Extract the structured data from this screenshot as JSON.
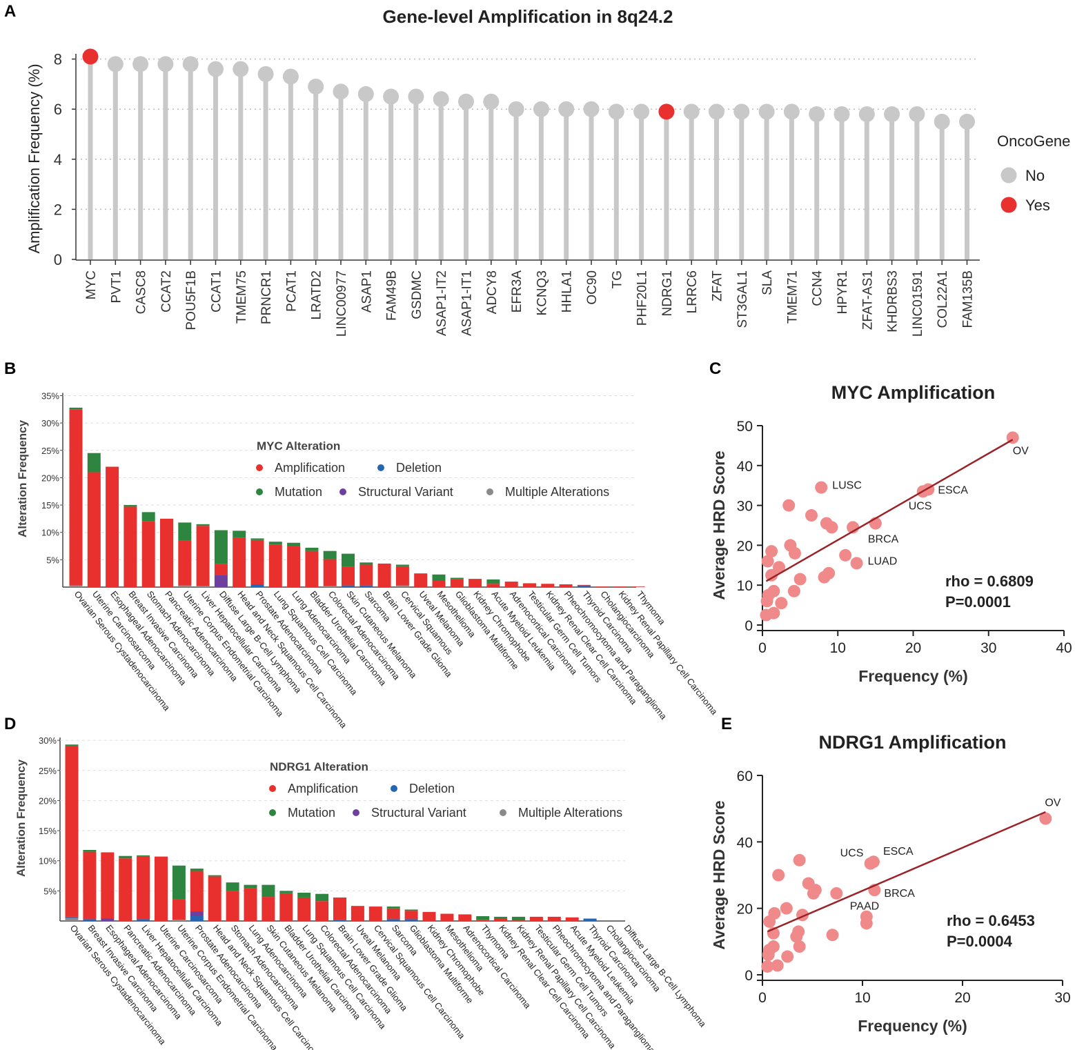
{
  "panels": {
    "a": "A",
    "b": "B",
    "c": "C",
    "d": "D",
    "e": "E"
  },
  "colors": {
    "amplification": "#e8302e",
    "deletion": "#2566b3",
    "mutation": "#2e8540",
    "structural_variant": "#6f3fa0",
    "multiple": "#8a8a8a",
    "lollipop_no": "#c8c8c8",
    "lollipop_yes": "#e8302e",
    "scatter_point": "#f08a8a",
    "fit_line": "#9b2226"
  },
  "chart_data": [
    {
      "id": "A",
      "type": "lollipop",
      "title": "Gene-level Amplification in 8q24.2",
      "xlabel": "",
      "ylabel": "Amplification Frequency (%)",
      "ylim": [
        0,
        8.5
      ],
      "yticks": [
        0,
        2,
        4,
        6,
        8
      ],
      "grid": true,
      "legend": {
        "title": "OncoGene",
        "entries": [
          "No",
          "Yes"
        ],
        "placement": "right"
      },
      "categories": [
        "MYC",
        "PVT1",
        "CASC8",
        "CCAT2",
        "POU5F1B",
        "CCAT1",
        "TMEM75",
        "PRNCR1",
        "PCAT1",
        "LRATD2",
        "LINC00977",
        "ASAP1",
        "FAM49B",
        "GSDMC",
        "ASAP1-IT2",
        "ASAP1-IT1",
        "ADCY8",
        "EFR3A",
        "KCNQ3",
        "HHLA1",
        "OC90",
        "TG",
        "PHF20L1",
        "NDRG1",
        "LRRC6",
        "ZFAT",
        "ST3GAL1",
        "SLA",
        "TMEM71",
        "CCN4",
        "HPYR1",
        "ZFAT-AS1",
        "KHDRBS3",
        "LINC01591",
        "COL22A1",
        "FAM135B"
      ],
      "values": [
        8.1,
        7.8,
        7.8,
        7.8,
        7.8,
        7.6,
        7.6,
        7.4,
        7.3,
        6.9,
        6.7,
        6.6,
        6.5,
        6.5,
        6.4,
        6.3,
        6.3,
        6.0,
        6.0,
        6.0,
        6.0,
        5.9,
        5.9,
        5.9,
        5.9,
        5.9,
        5.9,
        5.9,
        5.9,
        5.8,
        5.8,
        5.8,
        5.8,
        5.8,
        5.5,
        5.5
      ],
      "oncogene": [
        "Yes",
        "No",
        "No",
        "No",
        "No",
        "No",
        "No",
        "No",
        "No",
        "No",
        "No",
        "No",
        "No",
        "No",
        "No",
        "No",
        "No",
        "No",
        "No",
        "No",
        "No",
        "No",
        "No",
        "Yes",
        "No",
        "No",
        "No",
        "No",
        "No",
        "No",
        "No",
        "No",
        "No",
        "No",
        "No",
        "No"
      ]
    },
    {
      "id": "B",
      "type": "bar",
      "stacked": true,
      "title": "",
      "xlabel": "",
      "ylabel": "Alteration Frequency",
      "ylim": [
        0,
        35
      ],
      "yticks": [
        "5%",
        "10%",
        "15%",
        "20%",
        "25%",
        "30%",
        "35%"
      ],
      "ytick_values": [
        5,
        10,
        15,
        20,
        25,
        30,
        35
      ],
      "legend": {
        "title": "MYC Alteration",
        "entries": [
          "Amplification",
          "Deletion",
          "Mutation",
          "Structural Variant",
          "Multiple Alterations"
        ],
        "placement": "top-center"
      },
      "categories": [
        "Ovarian Serous Cystadenocarcinoma",
        "Uterine Carcinosarcoma",
        "Esophageal Adenocarcinoma",
        "Breast Invasive Carcinoma",
        "Stomach Adenocarcinoma",
        "Pancreatic Adenocarcinoma",
        "Uterine Corpus Endometrial Carcinoma",
        "Liver Hepatocellular Carcinoma",
        "Diffuse Large B-Cell Lymphoma",
        "Head and Neck Squamous Cell Carcinoma",
        "Prostate Adenocarcinoma",
        "Lung Squamous Cell Carcinoma",
        "Lung Adenocarcinoma",
        "Bladder Urothelial Carcinoma",
        "Colorectal Adenocarcinoma",
        "Skin Cutaneous Melanoma",
        "Sarcoma",
        "Brain Lower Grade Glioma",
        "Cervical Squamous",
        "Uveal Melanoma",
        "Mesothelioma",
        "Glioblastoma Multiforme",
        "Kidney Chromophobe",
        "Acute Myeloid Leukemia",
        "Adrenocortical Carcinoma",
        "Testicular Germ Cell Tumors",
        "Kidney Renal Clear Cell Carcinoma",
        "Pheochromocytoma and Paraganglioma",
        "Thyroid Carcinoma",
        "Cholangiocarcinoma",
        "Kidney Renal Papillary Cell Carcinoma",
        "Thymoma"
      ],
      "series": [
        {
          "name": "Multiple Alterations",
          "values": [
            0.3,
            0,
            0,
            0,
            0,
            0,
            0.3,
            0.2,
            0,
            0,
            0,
            0,
            0,
            0,
            0.2,
            0,
            0,
            0,
            0.3,
            0,
            0,
            0,
            0,
            0,
            0,
            0,
            0,
            0,
            0,
            0,
            0,
            0
          ]
        },
        {
          "name": "Deletion",
          "values": [
            0,
            0,
            0,
            0,
            0,
            0,
            0,
            0,
            0,
            0,
            0.5,
            0,
            0,
            0,
            0,
            0.3,
            0.3,
            0,
            0,
            0,
            0,
            0,
            0,
            0,
            0,
            0,
            0,
            0,
            0.3,
            0,
            0,
            0
          ]
        },
        {
          "name": "Structural Variant",
          "values": [
            0,
            0,
            0,
            0,
            0,
            0,
            0,
            0,
            2.2,
            0,
            0,
            0,
            0,
            0,
            0,
            0,
            0,
            0,
            0,
            0,
            0,
            0,
            0,
            0,
            0,
            0,
            0,
            0,
            0,
            0,
            0,
            0
          ]
        },
        {
          "name": "Amplification",
          "values": [
            32.2,
            21.0,
            22.0,
            14.7,
            12.0,
            12.5,
            8.2,
            11.0,
            2.0,
            9.0,
            8.1,
            7.8,
            7.5,
            6.6,
            4.9,
            3.4,
            3.8,
            4.3,
            3.5,
            2.5,
            1.2,
            1.5,
            1.5,
            0.6,
            1.0,
            0.7,
            0.6,
            0.5,
            0.1,
            0.1,
            0.1,
            0.1
          ]
        },
        {
          "name": "Mutation",
          "values": [
            0.3,
            3.5,
            0,
            0.3,
            1.7,
            0,
            3.3,
            0.3,
            6.2,
            1.3,
            0.3,
            0.5,
            0.6,
            0.6,
            1.5,
            2.4,
            0.4,
            0,
            0.3,
            0,
            1.1,
            0.2,
            0,
            0.8,
            0,
            0,
            0,
            0,
            0,
            0,
            0,
            0
          ]
        }
      ]
    },
    {
      "id": "C",
      "type": "scatter",
      "title": "MYC Amplification",
      "xlabel": "Frequency (%)",
      "ylabel": "Average HRD Score",
      "xlim": [
        0,
        40
      ],
      "ylim": [
        0,
        50
      ],
      "xticks": [
        0,
        10,
        20,
        30,
        40
      ],
      "yticks": [
        0,
        10,
        20,
        30,
        40,
        50
      ],
      "annotations": [
        "rho = 0.6809",
        "P=0.0001"
      ],
      "fit_line": {
        "x": [
          0.5,
          33.2
        ],
        "y": [
          11.0,
          46.5
        ]
      },
      "points": [
        {
          "x": 33.2,
          "y": 47.0,
          "label": "OV"
        },
        {
          "x": 7.8,
          "y": 34.5,
          "label": "LUSC"
        },
        {
          "x": 22.0,
          "y": 34.0,
          "label": "ESCA"
        },
        {
          "x": 21.3,
          "y": 33.5,
          "label": "UCS"
        },
        {
          "x": 15.0,
          "y": 25.5,
          "label": "BRCA"
        },
        {
          "x": 12.5,
          "y": 15.5,
          "label": "LUAD"
        },
        {
          "x": 3.5,
          "y": 30.0,
          "label": ""
        },
        {
          "x": 6.5,
          "y": 27.5,
          "label": ""
        },
        {
          "x": 8.5,
          "y": 25.5,
          "label": ""
        },
        {
          "x": 9.2,
          "y": 24.5,
          "label": ""
        },
        {
          "x": 12.0,
          "y": 24.5,
          "label": ""
        },
        {
          "x": 3.7,
          "y": 20.0,
          "label": ""
        },
        {
          "x": 4.3,
          "y": 18.0,
          "label": ""
        },
        {
          "x": 1.2,
          "y": 18.5,
          "label": ""
        },
        {
          "x": 0.7,
          "y": 16.0,
          "label": ""
        },
        {
          "x": 2.2,
          "y": 14.5,
          "label": ""
        },
        {
          "x": 11.0,
          "y": 17.5,
          "label": ""
        },
        {
          "x": 8.8,
          "y": 13.0,
          "label": ""
        },
        {
          "x": 8.2,
          "y": 12.0,
          "label": ""
        },
        {
          "x": 5.0,
          "y": 11.5,
          "label": ""
        },
        {
          "x": 1.2,
          "y": 12.5,
          "label": ""
        },
        {
          "x": 1.5,
          "y": 8.5,
          "label": ""
        },
        {
          "x": 4.2,
          "y": 8.5,
          "label": ""
        },
        {
          "x": 0.8,
          "y": 7.5,
          "label": ""
        },
        {
          "x": 0.6,
          "y": 6.0,
          "label": ""
        },
        {
          "x": 2.5,
          "y": 5.5,
          "label": ""
        },
        {
          "x": 0.5,
          "y": 2.5,
          "label": ""
        },
        {
          "x": 1.5,
          "y": 3.0,
          "label": ""
        }
      ]
    },
    {
      "id": "D",
      "type": "bar",
      "stacked": true,
      "title": "",
      "xlabel": "",
      "ylabel": "Alteration Frequency",
      "ylim": [
        0,
        30
      ],
      "yticks": [
        "5%",
        "10%",
        "15%",
        "20%",
        "25%",
        "30%"
      ],
      "ytick_values": [
        5,
        10,
        15,
        20,
        25,
        30
      ],
      "legend": {
        "title": "NDRG1 Alteration",
        "entries": [
          "Amplification",
          "Deletion",
          "Mutation",
          "Structural Variant",
          "Multiple Alterations"
        ],
        "placement": "top-center"
      },
      "categories": [
        "Ovarian Serous Cystadenocarcinoma",
        "Breast Invasive Carcinoma",
        "Esophageal Adenocarcinoma",
        "Pancreatic Adenocarcinoma",
        "Liver Hepatocellular Carcinoma",
        "Uterine Carcinosarcoma",
        "Uterine Corpus Endometrial Carcinoma",
        "Prostate Adenocarcinoma",
        "Head and Neck Squamous Cell Carcinoma",
        "Stomach Adenocarcinoma",
        "Lung Adenocarcinoma",
        "Skin Cutaneous Melanoma",
        "Bladder Urothelial Carcinoma",
        "Lung Squamous Cell Carcinoma",
        "Colorectal Adenocarcinoma",
        "Brain Lower Grade Glioma",
        "Uveal Melanoma",
        "Cervical Squamous Cell Carcinoma",
        "Sarcoma",
        "Glioblastoma Multiforme",
        "Kidney Chromophobe",
        "Mesothelioma",
        "Adrenocortical Carcinoma",
        "Thymoma",
        "Kidney Renal Clear Cell Carcinoma",
        "Kidney Renal Papillary Cell Carcinoma",
        "Testicular Germ Cell Tumors",
        "Pheochromocytoma and Paraganglioma",
        "Acute Myeloid Leukemia",
        "Thyroid Carcinoma",
        "Cholangiocarcinoma",
        "Diffuse Large B-Cell Lymphoma"
      ],
      "series": [
        {
          "name": "Multiple Alterations",
          "values": [
            0.5,
            0,
            0,
            0,
            0,
            0,
            0.2,
            0,
            0,
            0,
            0,
            0,
            0,
            0,
            0,
            0,
            0,
            0,
            0,
            0,
            0,
            0,
            0,
            0,
            0,
            0,
            0,
            0,
            0,
            0,
            0,
            0
          ]
        },
        {
          "name": "Deletion",
          "values": [
            0.2,
            0.3,
            0,
            0,
            0.3,
            0,
            0,
            0.8,
            0,
            0,
            0,
            0,
            0,
            0,
            0,
            0.2,
            0,
            0,
            0.3,
            0.3,
            0,
            0,
            0,
            0,
            0,
            0,
            0,
            0,
            0,
            0.4,
            0,
            0
          ]
        },
        {
          "name": "Structural Variant",
          "values": [
            0,
            0,
            0.4,
            0,
            0,
            0,
            0,
            0.8,
            0,
            0,
            0,
            0,
            0,
            0,
            0,
            0,
            0,
            0,
            0,
            0,
            0,
            0,
            0,
            0,
            0,
            0,
            0,
            0,
            0,
            0,
            0,
            0
          ]
        },
        {
          "name": "Amplification",
          "values": [
            28.4,
            11.2,
            11.0,
            10.4,
            10.4,
            10.7,
            3.4,
            6.7,
            7.4,
            5.0,
            5.4,
            4.0,
            4.6,
            3.9,
            3.3,
            3.7,
            2.5,
            2.4,
            1.8,
            1.4,
            1.5,
            1.2,
            1.1,
            0.2,
            0.4,
            0.1,
            0.7,
            0.7,
            0.6,
            0,
            0,
            0
          ]
        },
        {
          "name": "Mutation",
          "values": [
            0.2,
            0.3,
            0,
            0.4,
            0.2,
            0,
            5.6,
            0.4,
            0.2,
            1.4,
            0.6,
            2.0,
            0.4,
            0.8,
            1.2,
            0,
            0,
            0,
            0.3,
            0.2,
            0,
            0,
            0,
            0.6,
            0.3,
            0.6,
            0,
            0,
            0,
            0,
            0,
            0
          ]
        }
      ]
    },
    {
      "id": "E",
      "type": "scatter",
      "title": "NDRG1 Amplification",
      "xlabel": "Frequency (%)",
      "ylabel": "Average HRD Score",
      "xlim": [
        0,
        30
      ],
      "ylim": [
        0,
        60
      ],
      "xticks": [
        0,
        10,
        20,
        30
      ],
      "yticks": [
        0,
        20,
        40,
        60
      ],
      "annotations": [
        "rho = 0.6453",
        "P=0.0004"
      ],
      "fit_line": {
        "x": [
          0.5,
          28.3
        ],
        "y": [
          13.0,
          49.0
        ]
      },
      "points": [
        {
          "x": 28.3,
          "y": 47.0,
          "label": "OV"
        },
        {
          "x": 10.8,
          "y": 33.5,
          "label": "UCS"
        },
        {
          "x": 11.1,
          "y": 34.0,
          "label": "ESCA"
        },
        {
          "x": 10.4,
          "y": 17.5,
          "label": "PAAD"
        },
        {
          "x": 11.2,
          "y": 25.5,
          "label": "BRCA"
        },
        {
          "x": 3.7,
          "y": 34.5,
          "label": ""
        },
        {
          "x": 1.6,
          "y": 30.0,
          "label": ""
        },
        {
          "x": 4.6,
          "y": 27.5,
          "label": ""
        },
        {
          "x": 5.3,
          "y": 25.5,
          "label": ""
        },
        {
          "x": 5.1,
          "y": 24.5,
          "label": ""
        },
        {
          "x": 7.4,
          "y": 24.5,
          "label": ""
        },
        {
          "x": 2.4,
          "y": 20.0,
          "label": ""
        },
        {
          "x": 4.0,
          "y": 18.0,
          "label": ""
        },
        {
          "x": 1.2,
          "y": 18.5,
          "label": ""
        },
        {
          "x": 0.7,
          "y": 16.0,
          "label": ""
        },
        {
          "x": 10.4,
          "y": 15.5,
          "label": ""
        },
        {
          "x": 3.6,
          "y": 13.0,
          "label": ""
        },
        {
          "x": 3.4,
          "y": 11.5,
          "label": ""
        },
        {
          "x": 7.0,
          "y": 12.0,
          "label": ""
        },
        {
          "x": 1.1,
          "y": 12.5,
          "label": ""
        },
        {
          "x": 1.1,
          "y": 8.5,
          "label": ""
        },
        {
          "x": 3.7,
          "y": 8.5,
          "label": ""
        },
        {
          "x": 0.7,
          "y": 7.5,
          "label": ""
        },
        {
          "x": 0.6,
          "y": 6.0,
          "label": ""
        },
        {
          "x": 2.5,
          "y": 5.5,
          "label": ""
        },
        {
          "x": 0.5,
          "y": 2.5,
          "label": ""
        },
        {
          "x": 1.5,
          "y": 2.8,
          "label": ""
        }
      ]
    }
  ]
}
